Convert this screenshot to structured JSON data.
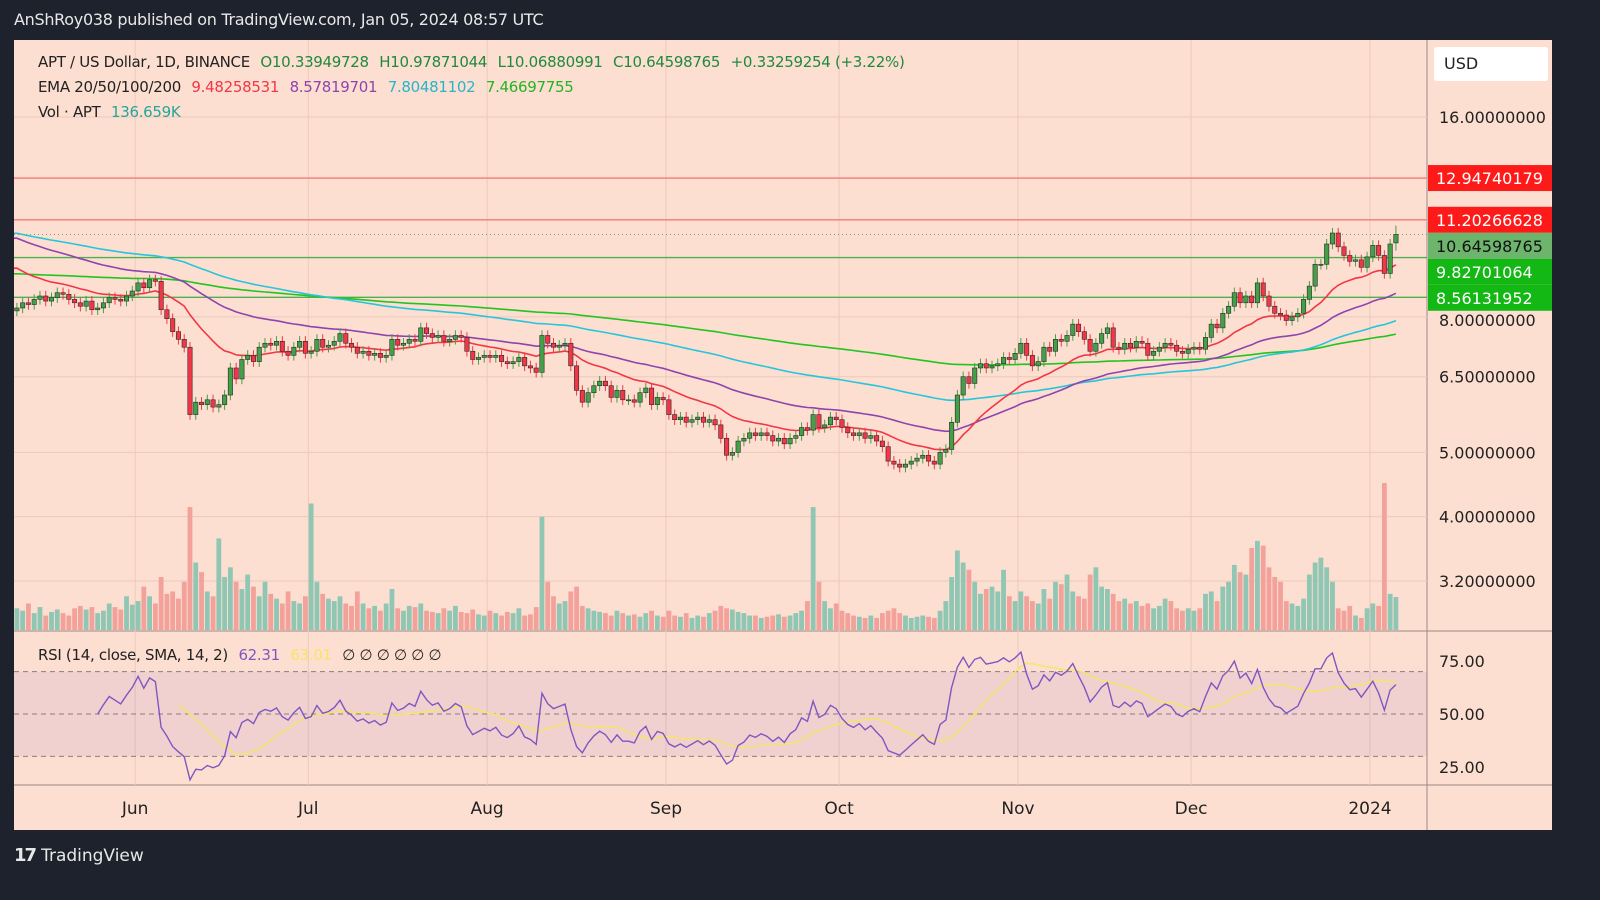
{
  "publisher_line": "AnShRoy038 published on TradingView.com, Jan 05, 2024 08:57 UTC",
  "legend": {
    "symbol": "APT / US Dollar, 1D, BINANCE",
    "open": "O10.33949728",
    "high": "H10.97871044",
    "low": "L10.06880991",
    "close": "C10.64598765",
    "change": "+0.33259254 (+3.22%)",
    "ema_label": "EMA 20/50/100/200",
    "ema_values": [
      "9.48258531",
      "8.57819701",
      "7.80481102",
      "7.46697755"
    ],
    "vol_label": "Vol · APT",
    "vol_value": "136.659K",
    "rsi_label": "RSI (14, close, SMA, 14, 2)",
    "rsi_value": "62.31",
    "rsi_sma_value": "63.01",
    "rsi_extra": "∅ ∅ ∅ ∅ ∅ ∅"
  },
  "currency_button": "USD",
  "footer_brand": "TradingView",
  "colors": {
    "background": "#fddfd1",
    "up": "#43a047",
    "down": "#f23645",
    "vol_up": "#8fc6b4",
    "vol_down": "#f2a29a",
    "ema20": "#f23645",
    "ema50": "#8e44ad",
    "ema100": "#26c6da",
    "ema200": "#22c422",
    "rsi": "#7e57c2",
    "rsi_sma": "#f5e663",
    "resistance": "#f27a7a",
    "support": "#4caf50"
  },
  "chart_data": {
    "type": "candlestick",
    "first_date": "2023-05-11",
    "last_date": "2024-01-05",
    "y_scale": "log",
    "ylim": [
      2.7,
      20.9
    ],
    "y_ticks": [
      "16.00000000",
      "8.00000000",
      "6.50000000",
      "5.00000000",
      "4.00000000",
      "3.20000000"
    ],
    "x_ticks": [
      {
        "label": "Jun",
        "date": "2023-06-01"
      },
      {
        "label": "Jul",
        "date": "2023-07-01"
      },
      {
        "label": "Aug",
        "date": "2023-08-01"
      },
      {
        "label": "Sep",
        "date": "2023-09-01"
      },
      {
        "label": "Oct",
        "date": "2023-10-01"
      },
      {
        "label": "Nov",
        "date": "2023-11-01"
      },
      {
        "label": "Dec",
        "date": "2023-12-01"
      },
      {
        "label": "2024",
        "date": "2024-01-01"
      }
    ],
    "last_candle": {
      "open": 10.33949728,
      "high": 10.97871044,
      "low": 10.06880991,
      "close": 10.64598765
    },
    "closes": [
      8.25,
      8.4,
      8.35,
      8.5,
      8.6,
      8.45,
      8.55,
      8.7,
      8.65,
      8.5,
      8.4,
      8.3,
      8.45,
      8.2,
      8.25,
      8.4,
      8.55,
      8.5,
      8.45,
      8.6,
      8.75,
      9.0,
      8.85,
      9.1,
      9.05,
      8.2,
      7.95,
      7.6,
      7.4,
      7.2,
      5.7,
      5.95,
      5.9,
      6.0,
      5.85,
      5.9,
      6.1,
      6.7,
      6.45,
      6.9,
      7.0,
      6.85,
      7.2,
      7.3,
      7.25,
      7.35,
      7.1,
      7.0,
      7.2,
      7.35,
      7.05,
      7.1,
      7.4,
      7.2,
      7.25,
      7.35,
      7.55,
      7.3,
      7.2,
      7.05,
      7.1,
      7.0,
      7.05,
      6.95,
      7.0,
      7.4,
      7.25,
      7.3,
      7.4,
      7.35,
      7.7,
      7.55,
      7.45,
      7.5,
      7.35,
      7.4,
      7.5,
      7.45,
      7.1,
      6.9,
      6.95,
      7.0,
      6.95,
      7.0,
      6.85,
      6.8,
      6.85,
      6.95,
      6.75,
      6.7,
      6.6,
      7.5,
      7.3,
      7.2,
      7.25,
      7.3,
      6.75,
      6.2,
      5.95,
      6.15,
      6.3,
      6.4,
      6.3,
      6.05,
      6.2,
      6.0,
      6.0,
      5.95,
      6.15,
      6.25,
      5.9,
      6.05,
      6.0,
      5.7,
      5.6,
      5.65,
      5.55,
      5.6,
      5.65,
      5.55,
      5.6,
      5.5,
      5.25,
      4.95,
      5.0,
      5.2,
      5.25,
      5.35,
      5.3,
      5.35,
      5.3,
      5.2,
      5.25,
      5.15,
      5.25,
      5.3,
      5.45,
      5.4,
      5.7,
      5.45,
      5.5,
      5.65,
      5.6,
      5.45,
      5.35,
      5.3,
      5.35,
      5.25,
      5.3,
      5.2,
      5.1,
      4.85,
      4.8,
      4.75,
      4.8,
      4.85,
      4.9,
      4.95,
      4.85,
      4.8,
      5.0,
      5.05,
      5.55,
      6.1,
      6.5,
      6.35,
      6.7,
      6.8,
      6.7,
      6.75,
      6.8,
      6.95,
      6.9,
      7.05,
      7.3,
      7.0,
      6.75,
      6.85,
      7.2,
      7.1,
      7.4,
      7.35,
      7.5,
      7.8,
      7.6,
      7.4,
      7.1,
      7.3,
      7.55,
      7.7,
      7.2,
      7.15,
      7.3,
      7.2,
      7.35,
      7.3,
      7.0,
      7.1,
      7.2,
      7.3,
      7.25,
      7.1,
      7.05,
      7.15,
      7.2,
      7.15,
      7.45,
      7.8,
      7.7,
      8.1,
      8.3,
      8.7,
      8.4,
      8.6,
      8.4,
      9.0,
      8.6,
      8.3,
      8.1,
      8.05,
      7.9,
      8.0,
      8.1,
      8.5,
      8.9,
      9.6,
      9.6,
      10.3,
      10.7,
      10.2,
      9.9,
      9.7,
      9.75,
      9.5,
      9.85,
      10.25,
      9.9,
      9.3,
      10.3,
      10.65
    ],
    "volume_k": [
      90,
      80,
      110,
      70,
      95,
      60,
      75,
      85,
      70,
      60,
      90,
      100,
      85,
      95,
      70,
      80,
      110,
      95,
      85,
      140,
      105,
      120,
      180,
      140,
      110,
      220,
      150,
      160,
      130,
      200,
      510,
      280,
      240,
      160,
      140,
      380,
      220,
      260,
      200,
      170,
      230,
      180,
      140,
      200,
      150,
      130,
      110,
      160,
      120,
      110,
      140,
      525,
      200,
      150,
      130,
      120,
      140,
      110,
      100,
      160,
      110,
      90,
      100,
      80,
      110,
      170,
      90,
      80,
      100,
      95,
      110,
      80,
      75,
      70,
      90,
      80,
      100,
      75,
      70,
      85,
      65,
      60,
      80,
      70,
      60,
      75,
      70,
      90,
      60,
      65,
      95,
      470,
      200,
      140,
      110,
      120,
      160,
      180,
      100,
      90,
      80,
      75,
      70,
      60,
      80,
      70,
      60,
      65,
      55,
      70,
      80,
      60,
      55,
      80,
      60,
      55,
      70,
      50,
      60,
      55,
      70,
      80,
      100,
      90,
      85,
      75,
      70,
      60,
      60,
      50,
      55,
      60,
      65,
      55,
      60,
      70,
      80,
      120,
      510,
      200,
      120,
      90,
      110,
      80,
      70,
      60,
      55,
      50,
      60,
      50,
      70,
      80,
      90,
      70,
      60,
      50,
      55,
      60,
      55,
      50,
      80,
      120,
      220,
      330,
      280,
      250,
      200,
      150,
      170,
      180,
      160,
      250,
      140,
      120,
      160,
      140,
      120,
      110,
      170,
      130,
      200,
      190,
      230,
      160,
      140,
      130,
      230,
      260,
      180,
      170,
      150,
      120,
      130,
      110,
      120,
      100,
      110,
      90,
      100,
      130,
      120,
      90,
      80,
      90,
      80,
      90,
      150,
      160,
      120,
      180,
      200,
      270,
      240,
      230,
      340,
      370,
      350,
      260,
      220,
      200,
      120,
      110,
      100,
      130,
      230,
      280,
      300,
      260,
      200,
      90,
      80,
      100,
      60,
      50,
      90,
      110,
      100,
      610,
      150,
      137
    ],
    "ema_start": {
      "ema20": 9.6,
      "ema50": 10.6,
      "ema100": 10.74,
      "ema200": 9.3
    },
    "horizontal_levels": [
      {
        "value": 12.94740179,
        "label": "12.94740179",
        "kind": "resistance"
      },
      {
        "value": 11.20266628,
        "label": "11.20266628",
        "kind": "resistance"
      },
      {
        "value": 9.82701064,
        "label": "9.82701064",
        "kind": "support"
      },
      {
        "value": 8.56131952,
        "label": "8.56131952",
        "kind": "support"
      }
    ],
    "last_price": {
      "value": 10.64598765,
      "label": "10.64598765"
    },
    "rsi": {
      "period": 14,
      "sma": 14,
      "upper_band": 70,
      "lower_band": 30,
      "mid": 50,
      "ticks": [
        "75.00",
        "50.00",
        "25.00"
      ],
      "tick_values": [
        75,
        50,
        25
      ]
    }
  }
}
